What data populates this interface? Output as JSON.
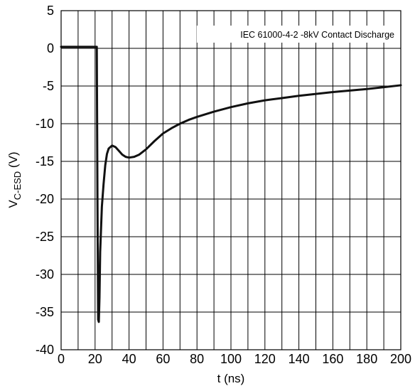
{
  "chart_data": {
    "type": "line",
    "title": "",
    "xlabel": "t (ns)",
    "ylabel_main": "V",
    "ylabel_sub": "C-ESD",
    "ylabel_unit": " (V)",
    "xlim": [
      0,
      200
    ],
    "ylim": [
      -40,
      5
    ],
    "xticks": [
      0,
      20,
      40,
      60,
      80,
      100,
      120,
      140,
      160,
      180,
      200
    ],
    "yticks": [
      5,
      0,
      -5,
      -10,
      -15,
      -20,
      -25,
      -30,
      -35,
      -40
    ],
    "x_grid_step": 10,
    "grid": true,
    "legend_position": "top-right",
    "series": [
      {
        "name": "IEC 61000-4-2 -8kV Contact Discharge",
        "color": "#111111",
        "x": [
          0,
          5,
          10,
          15,
          20,
          21,
          21.4,
          21.8,
          22.2,
          22.6,
          23,
          24,
          25,
          26,
          27,
          28,
          30,
          32,
          34,
          36,
          38,
          40,
          43,
          46,
          50,
          55,
          60,
          65,
          70,
          75,
          80,
          90,
          100,
          110,
          120,
          130,
          140,
          150,
          160,
          170,
          180,
          190,
          200
        ],
        "y": [
          0.2,
          0.2,
          0.2,
          0.2,
          0.2,
          0.2,
          -20,
          -36,
          -36.3,
          -33,
          -27,
          -21,
          -18,
          -15.5,
          -14,
          -13.3,
          -12.9,
          -13.1,
          -13.6,
          -14.1,
          -14.4,
          -14.5,
          -14.4,
          -14.1,
          -13.4,
          -12.3,
          -11.3,
          -10.6,
          -10,
          -9.5,
          -9.1,
          -8.4,
          -7.8,
          -7.3,
          -6.9,
          -6.6,
          -6.3,
          -6.05,
          -5.8,
          -5.6,
          -5.4,
          -5.15,
          -4.9
        ]
      }
    ]
  }
}
